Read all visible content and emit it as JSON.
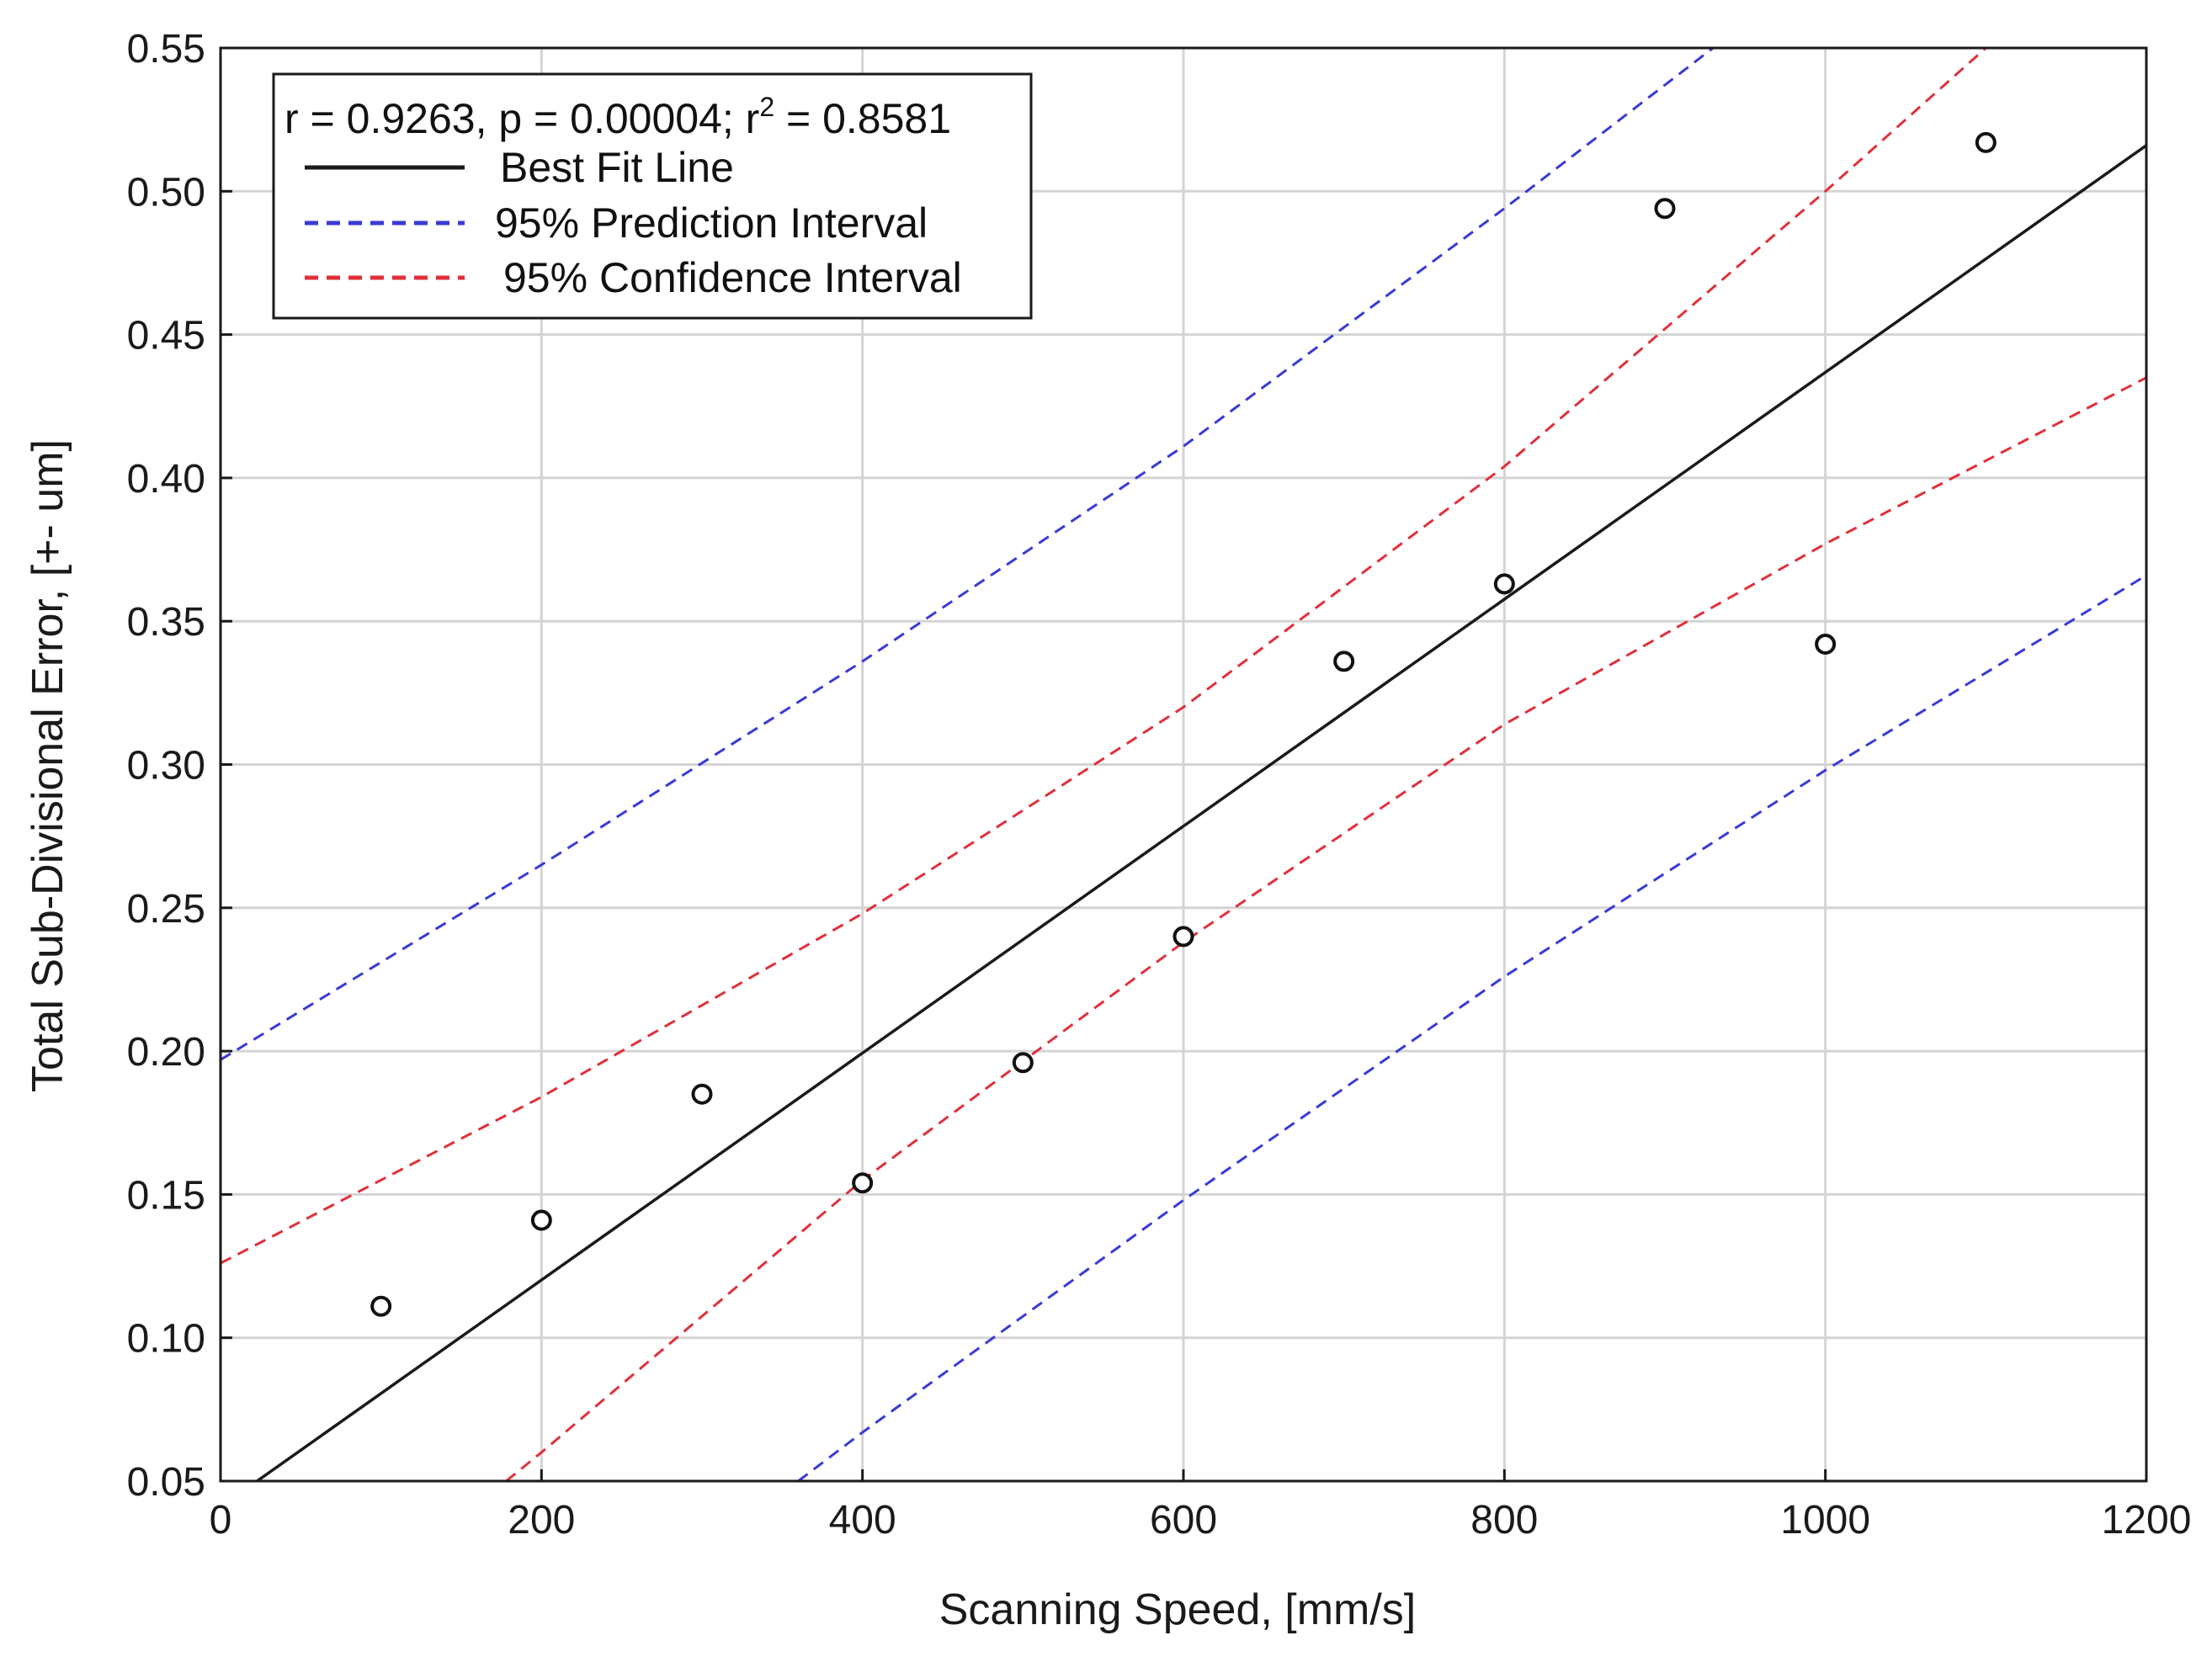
{
  "chart_data": {
    "type": "scatter",
    "xlabel": "Scanning Speed, [mm/s]",
    "ylabel": "Total Sub-Divisional Error, [+- um]",
    "xlim": [
      0,
      1200
    ],
    "ylim": [
      0.05,
      0.55
    ],
    "x_ticks": [
      "0",
      "200",
      "400",
      "600",
      "800",
      "1000",
      "1200"
    ],
    "y_ticks": [
      "0.05",
      "0.10",
      "0.15",
      "0.20",
      "0.25",
      "0.30",
      "0.35",
      "0.40",
      "0.45",
      "0.50",
      "0.55"
    ],
    "grid": true,
    "legend_position": "top-left",
    "stats_text": "r = 0.9263, p = 0.00004; r",
    "stats_text_sup": "2",
    "stats_text_tail": " = 0.8581",
    "points": {
      "x": [
        100,
        200,
        300,
        400,
        500,
        600,
        700,
        800,
        900,
        1000,
        1100
      ],
      "y": [
        0.111,
        0.141,
        0.185,
        0.154,
        0.196,
        0.24,
        0.336,
        0.363,
        0.494,
        0.342,
        0.517
      ]
    },
    "series": [
      {
        "name": "Best Fit Line",
        "color": "#1a1a1a",
        "dash": "solid",
        "x": [
          0,
          1200
        ],
        "y": [
          0.041,
          0.516
        ]
      },
      {
        "name": "95% Prediction Interval",
        "color": "#3a3ad6",
        "dash": "dashed",
        "upper": {
          "x": [
            0,
            200,
            400,
            600,
            800,
            930
          ],
          "y": [
            0.197,
            0.265,
            0.336,
            0.411,
            0.494,
            0.55
          ]
        },
        "lower": {
          "x": [
            360,
            400,
            600,
            800,
            1000,
            1200
          ],
          "y": [
            0.05,
            0.067,
            0.148,
            0.226,
            0.298,
            0.366
          ]
        }
      },
      {
        "name": "95% Confidence Interval",
        "color": "#e0303a",
        "dash": "dashed",
        "upper": {
          "x": [
            0,
            200,
            400,
            600,
            800,
            1000,
            1100
          ],
          "y": [
            0.126,
            0.184,
            0.248,
            0.32,
            0.404,
            0.5,
            0.55
          ]
        },
        "lower": {
          "x": [
            178,
            200,
            400,
            600,
            800,
            1000,
            1200
          ],
          "y": [
            0.05,
            0.06,
            0.155,
            0.238,
            0.314,
            0.377,
            0.435
          ]
        }
      }
    ]
  }
}
